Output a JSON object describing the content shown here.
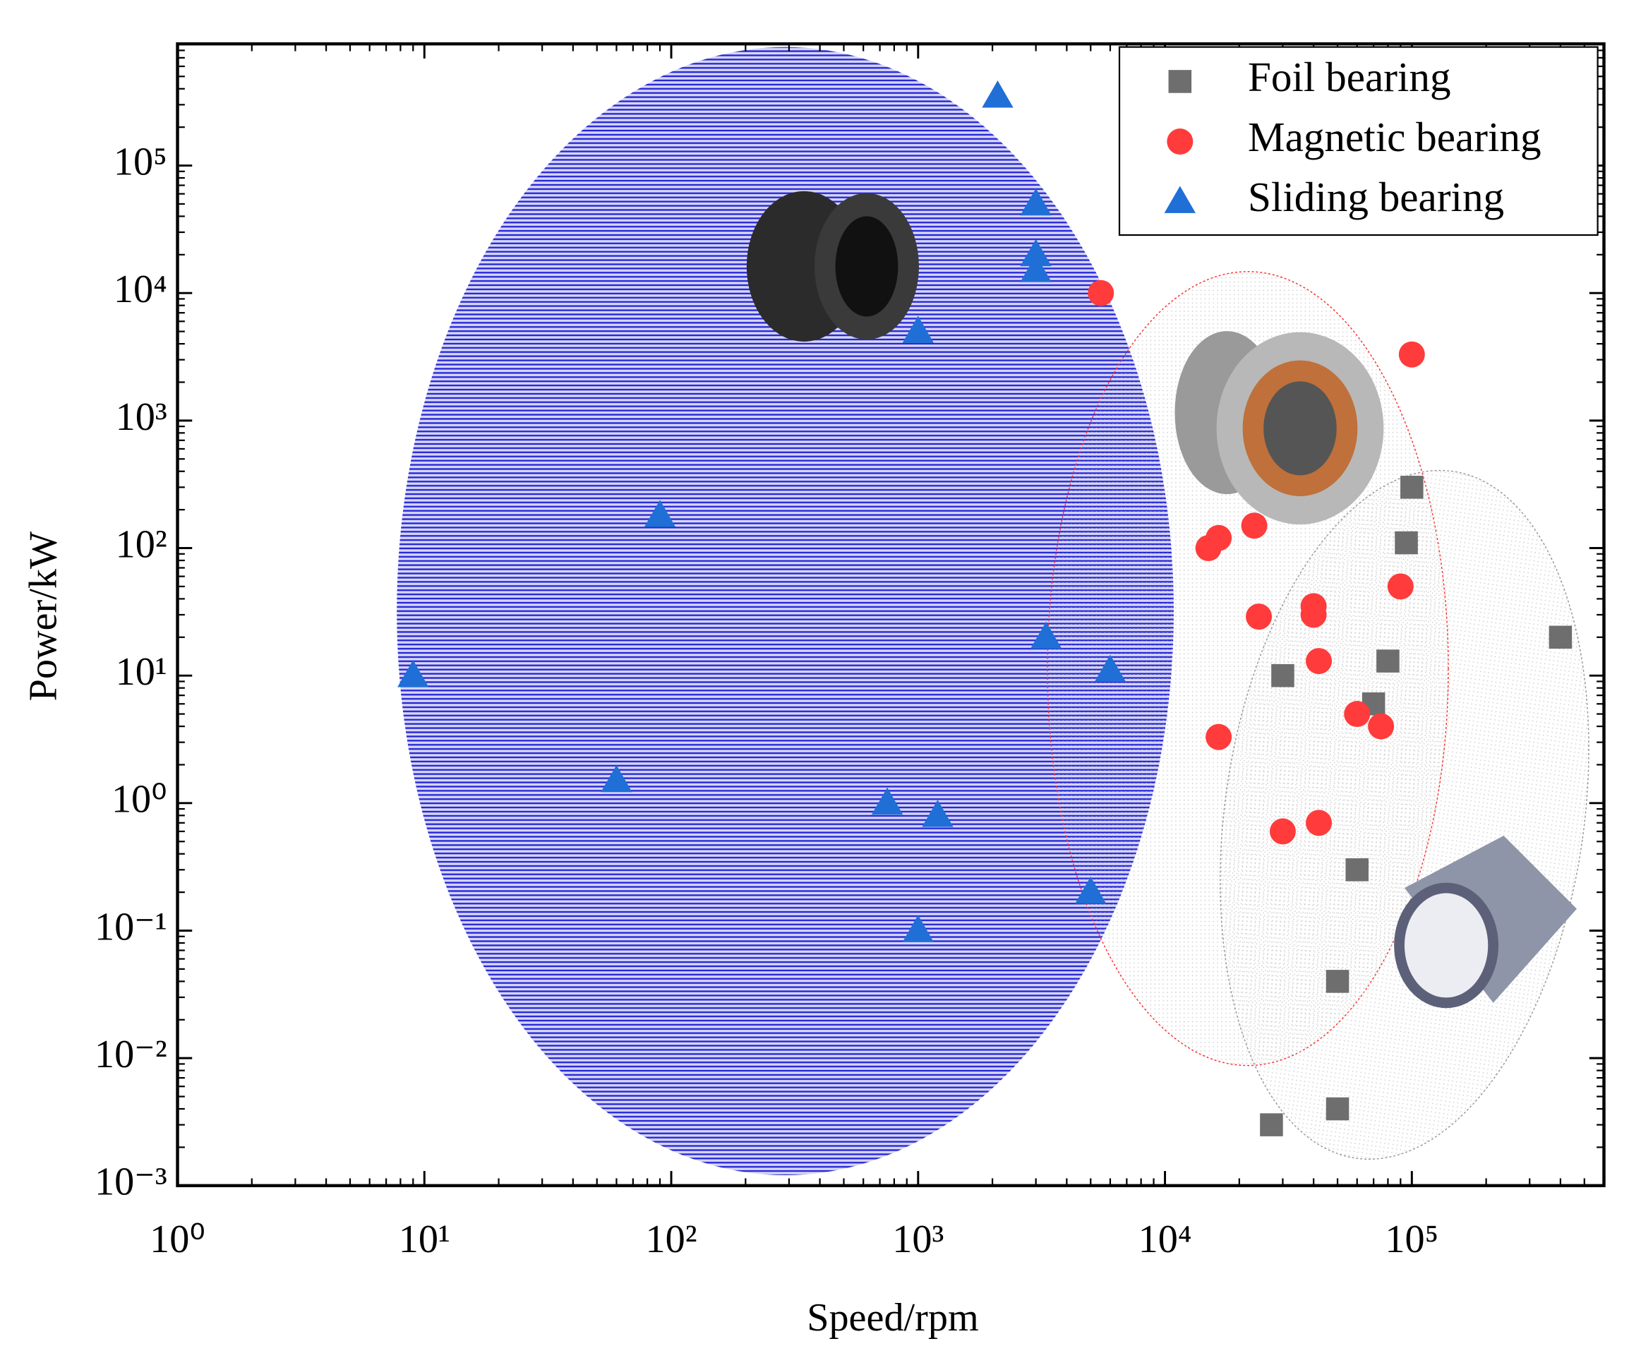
{
  "chart_data": {
    "type": "scatter",
    "xlabel": "Speed/rpm",
    "ylabel": "Power/kW",
    "log_x": true,
    "log_y": true,
    "minor_ticks": true,
    "legend": "upper right",
    "xlim": [
      1,
      600000
    ],
    "ylim": [
      0.001,
      900000
    ],
    "xticks": [
      {
        "value": 1,
        "label": "10⁰"
      },
      {
        "value": 10,
        "label": "10¹"
      },
      {
        "value": 100,
        "label": "10²"
      },
      {
        "value": 1000,
        "label": "10³"
      },
      {
        "value": 10000,
        "label": "10⁴"
      },
      {
        "value": 100000,
        "label": "10⁵"
      }
    ],
    "yticks": [
      {
        "value": 0.001,
        "label": "10⁻³"
      },
      {
        "value": 0.01,
        "label": "10⁻²"
      },
      {
        "value": 0.1,
        "label": "10⁻¹"
      },
      {
        "value": 1,
        "label": "10⁰"
      },
      {
        "value": 10,
        "label": "10¹"
      },
      {
        "value": 100,
        "label": "10²"
      },
      {
        "value": 1000,
        "label": "10³"
      },
      {
        "value": 10000,
        "label": "10⁴"
      },
      {
        "value": 100000,
        "label": "10⁵"
      }
    ],
    "series": [
      {
        "name": "Foil bearing",
        "color": "#6e6e6e",
        "marker": "square",
        "x": [
          100000,
          95000,
          400000,
          30000,
          70000,
          80000,
          60000,
          50000,
          27000,
          50000
        ],
        "values": [
          300,
          110,
          20,
          10,
          6,
          13,
          0.3,
          0.04,
          0.003,
          0.004
        ]
      },
      {
        "name": "Magnetic bearing",
        "color": "#ff3b3b",
        "marker": "circle",
        "x": [
          5500,
          100000,
          15000,
          16500,
          16500,
          23000,
          24000,
          30000,
          40000,
          40000,
          42000,
          42000,
          60000,
          75000,
          90000
        ],
        "values": [
          10000,
          3300,
          100,
          120,
          3.3,
          150,
          29,
          0.6,
          35,
          30,
          13,
          0.7,
          5,
          4,
          50
        ]
      },
      {
        "name": "Sliding bearing",
        "color": "#1f6fd6",
        "marker": "triangle",
        "x": [
          9,
          60,
          90,
          750,
          1000,
          1000,
          1200,
          2100,
          3000,
          3000,
          3000,
          3300,
          5000,
          6000
        ],
        "values": [
          10,
          1.5,
          180,
          1.0,
          0.1,
          5000,
          0.8,
          350000,
          50000,
          20000,
          15000,
          20,
          0.2,
          11
        ]
      }
    ]
  }
}
